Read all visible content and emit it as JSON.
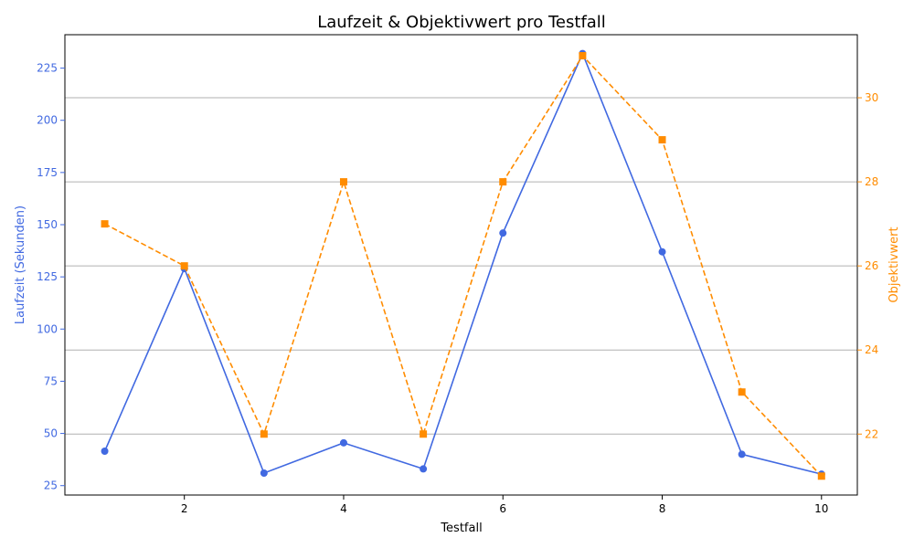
{
  "chart_data": {
    "type": "line",
    "title": "Laufzeit & Objektivwert pro Testfall",
    "xlabel": "Testfall",
    "ylabel": "Laufzeit (Sekunden)",
    "ylabel_right": "Objektivwert",
    "x": [
      1,
      2,
      3,
      4,
      5,
      6,
      7,
      8,
      9,
      10
    ],
    "xlim": [
      0.5,
      10.45
    ],
    "xticks": [
      2,
      4,
      6,
      8,
      10
    ],
    "ylim": [
      20.5,
      241
    ],
    "yticks": [
      25,
      50,
      75,
      100,
      125,
      150,
      175,
      200,
      225
    ],
    "ylim_right": [
      20.55,
      31.5
    ],
    "yticks_right": [
      22,
      24,
      26,
      28,
      30
    ],
    "grid": "right-axis horizontal",
    "series": [
      {
        "axis": "left",
        "color": "#4169e1",
        "marker": "circle",
        "linestyle": "solid",
        "values": [
          41.5,
          129,
          31,
          45.5,
          33,
          146,
          232,
          137,
          40,
          30.5
        ]
      },
      {
        "axis": "right",
        "color": "#ff8c00",
        "marker": "square",
        "linestyle": "dashed",
        "values": [
          27,
          26,
          22,
          28,
          22,
          28,
          31,
          29,
          23,
          21
        ]
      }
    ]
  }
}
